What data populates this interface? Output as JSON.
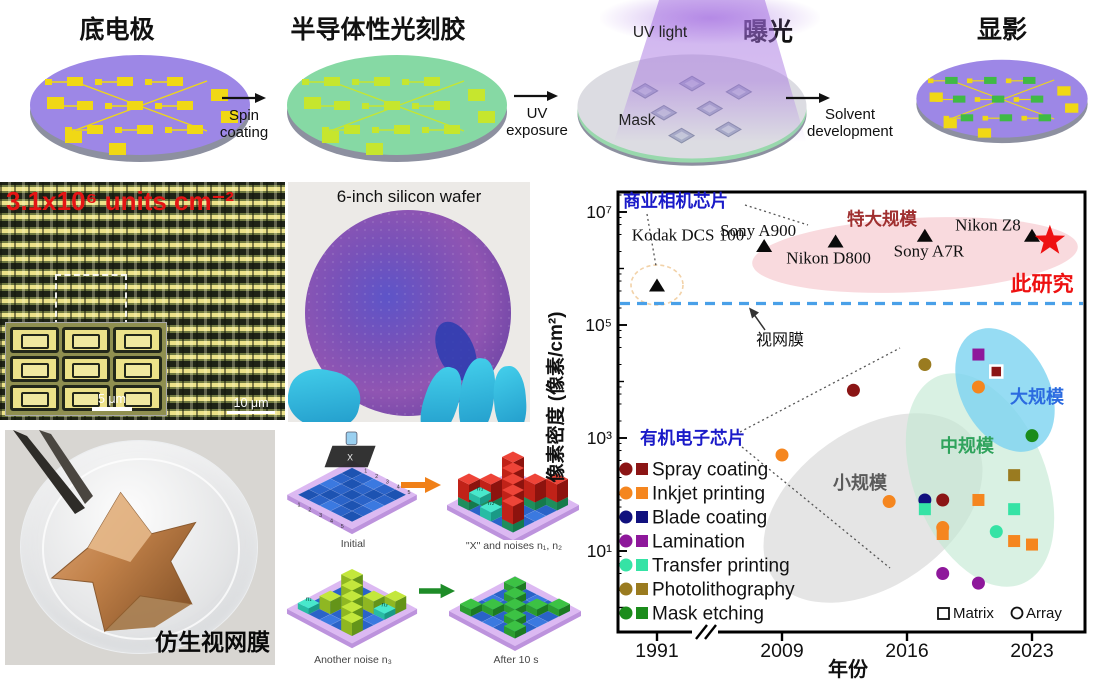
{
  "process": {
    "steps": [
      {
        "title": "底电极"
      },
      {
        "title": "半导体性光刻胶"
      },
      {
        "title": "曝光"
      },
      {
        "title": "显影"
      }
    ],
    "arrows": [
      {
        "line1": "Spin",
        "line2": "coating"
      },
      {
        "line1": "UV",
        "line2": "exposure"
      },
      {
        "line1": "Solvent",
        "line2": "development"
      }
    ],
    "uv_light_label": "UV light",
    "mask_label": "Mask"
  },
  "micrograph": {
    "density_label": "3.1x10⁶ units cm⁻²",
    "scalebar_main": "10 μm",
    "scalebar_inset": "5 μm"
  },
  "wafer_photo": {
    "caption": "6-inch silicon wafer"
  },
  "retina_photo": {
    "caption": "仿生视网膜"
  },
  "noise_panel": {
    "captions": [
      "Initial",
      "\"X\" and noises n₁, n₂",
      "Another noise n₃",
      "After 10 s"
    ],
    "cube_labels": {
      "n1": "n₁",
      "n2": "n₂",
      "n3": "n₃"
    },
    "grid_numbers": [
      "1",
      "2",
      "3",
      "4",
      "5"
    ],
    "mask_x": "X"
  },
  "chart_data": {
    "type": "scatter",
    "xlabel": "年份",
    "ylabel": "像素密度 (像素/cm²)",
    "x_ticks": [
      "1991",
      "2009",
      "2016",
      "2023"
    ],
    "x_axis_break_between": [
      "1991",
      "2009"
    ],
    "y_scale": "log",
    "y_ticks": [
      {
        "label": "10⁷",
        "exp": 7
      },
      {
        "label": "10⁵",
        "exp": 5
      },
      {
        "label": "10³",
        "exp": 3
      },
      {
        "label": "10¹",
        "exp": 1
      }
    ],
    "retina_line": {
      "label": "视网膜",
      "density": 240000,
      "color": "#49a0e8"
    },
    "group_labels": {
      "commercial": "商业相机芯片",
      "organic": "有机电子芯片",
      "this_work": "此研究",
      "ultra_large": "特大规模",
      "large": "大规模",
      "medium": "中规模",
      "small": "小规模"
    },
    "camera_chips": [
      {
        "name": "Kodak DCS 100",
        "year": 1991,
        "density": 500000
      },
      {
        "name": "Sony A900",
        "year": 2008,
        "density": 2500000
      },
      {
        "name": "Nikon D800",
        "year": 2012,
        "density": 3000000
      },
      {
        "name": "Sony A7R",
        "year": 2017,
        "density": 3800000
      },
      {
        "name": "Nikon Z8",
        "year": 2023,
        "density": 3800000
      }
    ],
    "this_work_point": {
      "year": 2024,
      "density": 3100000,
      "color": "#ee1111"
    },
    "methods": [
      {
        "name": "Spray coating",
        "color": "#8b1515"
      },
      {
        "name": "Inkjet printing",
        "color": "#f5861f"
      },
      {
        "name": "Blade coating",
        "color": "#10107e"
      },
      {
        "name": "Lamination",
        "color": "#8e189b"
      },
      {
        "name": "Transfer printing",
        "color": "#35e3a5"
      },
      {
        "name": "Photolithography",
        "color": "#9a7b20"
      },
      {
        "name": "Mask etching",
        "color": "#1b8c1b"
      }
    ],
    "marker_legend": [
      {
        "shape": "square",
        "label": "Matrix"
      },
      {
        "shape": "circle",
        "label": "Array"
      }
    ],
    "points": [
      {
        "method": "Inkjet printing",
        "shape": "circle",
        "year": 2009,
        "density": 500
      },
      {
        "method": "Spray coating",
        "shape": "circle",
        "year": 2013,
        "density": 7000
      },
      {
        "method": "Photolithography",
        "shape": "circle",
        "year": 2017,
        "density": 20000
      },
      {
        "method": "Lamination",
        "shape": "square",
        "year": 2020,
        "density": 30000
      },
      {
        "method": "Spray coating",
        "shape": "square",
        "year": 2021,
        "density": 15000
      },
      {
        "method": "Inkjet printing",
        "shape": "circle",
        "year": 2020,
        "density": 8000
      },
      {
        "method": "Mask etching",
        "shape": "circle",
        "year": 2023,
        "density": 1100
      },
      {
        "method": "Photolithography",
        "shape": "square",
        "year": 2022,
        "density": 220
      },
      {
        "method": "Inkjet printing",
        "shape": "circle",
        "year": 2015,
        "density": 75
      },
      {
        "method": "Blade coating",
        "shape": "circle",
        "year": 2017,
        "density": 80
      },
      {
        "method": "Transfer printing",
        "shape": "square",
        "year": 2017,
        "density": 55
      },
      {
        "method": "Spray coating",
        "shape": "circle",
        "year": 2018,
        "density": 80
      },
      {
        "method": "Inkjet printing",
        "shape": "square",
        "year": 2020,
        "density": 80
      },
      {
        "method": "Transfer printing",
        "shape": "square",
        "year": 2022,
        "density": 55
      },
      {
        "method": "Inkjet printing",
        "shape": "square",
        "year": 2018,
        "density": 20
      },
      {
        "method": "Inkjet printing",
        "shape": "circle",
        "year": 2018,
        "density": 26
      },
      {
        "method": "Transfer printing",
        "shape": "circle",
        "year": 2021,
        "density": 22
      },
      {
        "method": "Inkjet printing",
        "shape": "square",
        "year": 2022,
        "density": 15
      },
      {
        "method": "Inkjet printing",
        "shape": "square",
        "year": 2023,
        "density": 13
      },
      {
        "method": "Lamination",
        "shape": "circle",
        "year": 2018,
        "density": 4
      },
      {
        "method": "Lamination",
        "shape": "circle",
        "year": 2020,
        "density": 2.7
      }
    ]
  }
}
